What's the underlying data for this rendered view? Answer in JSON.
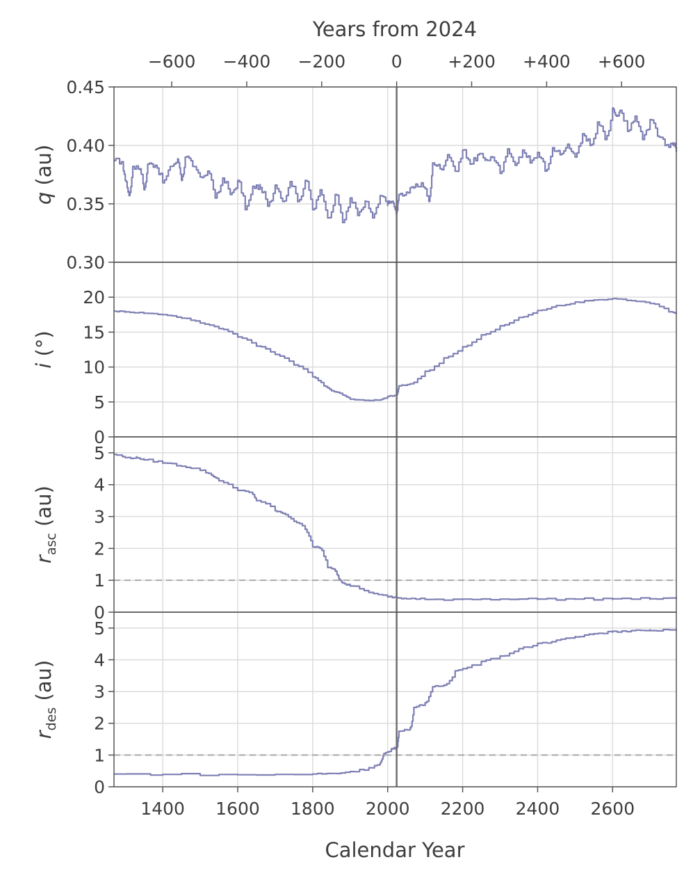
{
  "chart_data": {
    "type": "line",
    "x_axis": {
      "label": "Calendar Year",
      "range": [
        1270,
        2770
      ],
      "ticks": [
        1400,
        1600,
        1800,
        2000,
        2200,
        2400,
        2600
      ],
      "tick_labels": [
        "1400",
        "1600",
        "1800",
        "2000",
        "2200",
        "2400",
        "2600"
      ]
    },
    "top_axis": {
      "label": "Years from 2024",
      "ticks": [
        -600,
        -400,
        -200,
        0,
        200,
        400,
        600
      ],
      "tick_labels": [
        "−600",
        "−400",
        "−200",
        "0",
        "+200",
        "+400",
        "+600"
      ]
    },
    "reference_year": 2024,
    "line_color": "#7d7fb3",
    "panels": [
      {
        "ylabel_main": "q",
        "ylabel_sub": "",
        "ylabel_unit": " (au)",
        "ylim": [
          0.3,
          0.45
        ],
        "yticks": [
          0.3,
          0.35,
          0.4,
          0.45
        ],
        "ytick_labels": [
          "0.30",
          "0.35",
          "0.40",
          "0.45"
        ],
        "hline": null,
        "series": [
          {
            "x": [
              1270,
              1290,
              1300,
              1310,
              1320,
              1340,
              1350,
              1360,
              1380,
              1400,
              1420,
              1440,
              1450,
              1460,
              1480,
              1500,
              1520,
              1540,
              1560,
              1580,
              1600,
              1620,
              1640,
              1660,
              1680,
              1700,
              1720,
              1740,
              1760,
              1780,
              1800,
              1820,
              1840,
              1860,
              1880,
              1900,
              1920,
              1940,
              1960,
              1980,
              2000,
              2010,
              2020,
              2024,
              2030,
              2050,
              2070,
              2090,
              2110,
              2120,
              2140,
              2160,
              2180,
              2200,
              2220,
              2240,
              2260,
              2280,
              2300,
              2320,
              2340,
              2360,
              2380,
              2400,
              2420,
              2440,
              2460,
              2480,
              2500,
              2520,
              2540,
              2560,
              2580,
              2600,
              2610,
              2620,
              2640,
              2660,
              2680,
              2700,
              2720,
              2740,
              2760,
              2770
            ],
            "y": [
              0.387,
              0.386,
              0.37,
              0.357,
              0.382,
              0.38,
              0.362,
              0.384,
              0.383,
              0.368,
              0.382,
              0.388,
              0.37,
              0.39,
              0.382,
              0.373,
              0.378,
              0.355,
              0.372,
              0.358,
              0.37,
              0.345,
              0.365,
              0.364,
              0.348,
              0.366,
              0.352,
              0.369,
              0.352,
              0.37,
              0.345,
              0.362,
              0.338,
              0.358,
              0.334,
              0.355,
              0.34,
              0.352,
              0.338,
              0.357,
              0.35,
              0.352,
              0.345,
              0.343,
              0.358,
              0.36,
              0.364,
              0.368,
              0.352,
              0.385,
              0.38,
              0.392,
              0.378,
              0.396,
              0.384,
              0.392,
              0.388,
              0.39,
              0.376,
              0.397,
              0.383,
              0.396,
              0.385,
              0.394,
              0.378,
              0.398,
              0.392,
              0.401,
              0.39,
              0.41,
              0.4,
              0.42,
              0.405,
              0.432,
              0.425,
              0.43,
              0.412,
              0.425,
              0.405,
              0.422,
              0.408,
              0.4,
              0.402,
              0.396
            ]
          }
        ]
      },
      {
        "ylabel_main": "i",
        "ylabel_sub": "",
        "ylabel_unit": " (°)",
        "ylim": [
          0,
          25
        ],
        "yticks": [
          0,
          5,
          10,
          15,
          20
        ],
        "ytick_labels": [
          "0",
          "5",
          "10",
          "15",
          "20"
        ],
        "hline": null,
        "series": [
          {
            "x": [
              1270,
              1300,
              1350,
              1400,
              1450,
              1500,
              1550,
              1600,
              1650,
              1700,
              1750,
              1800,
              1830,
              1850,
              1880,
              1900,
              1950,
              1980,
              2000,
              2024,
              2030,
              2060,
              2100,
              2150,
              2200,
              2250,
              2300,
              2350,
              2400,
              2450,
              2500,
              2550,
              2600,
              2650,
              2700,
              2750,
              2770
            ],
            "y": [
              18.0,
              17.9,
              17.7,
              17.5,
              17.0,
              16.3,
              15.5,
              14.3,
              13.0,
              11.8,
              10.3,
              8.6,
              7.3,
              6.6,
              6.0,
              5.4,
              5.2,
              5.3,
              5.8,
              6.0,
              7.3,
              7.6,
              9.4,
              11.3,
              12.9,
              14.6,
              15.9,
              17.1,
              18.1,
              18.8,
              19.3,
              19.6,
              19.8,
              19.5,
              19.1,
              17.9,
              17.7
            ]
          }
        ]
      },
      {
        "ylabel_main": "r",
        "ylabel_sub": "asc",
        "ylabel_unit": " (au)",
        "ylim": [
          0,
          5.5
        ],
        "yticks": [
          0,
          1,
          2,
          3,
          4,
          5
        ],
        "ytick_labels": [
          "0",
          "1",
          "2",
          "3",
          "4",
          "5"
        ],
        "hline": 1,
        "series": [
          {
            "x": [
              1270,
              1300,
              1330,
              1350,
              1400,
              1450,
              1500,
              1530,
              1550,
              1600,
              1640,
              1650,
              1700,
              1720,
              1750,
              1780,
              1800,
              1820,
              1840,
              1860,
              1870,
              1880,
              1900,
              1950,
              2000,
              2024,
              2050,
              2100,
              2200,
              2300,
              2400,
              2500,
              2600,
              2700,
              2770
            ],
            "y": [
              4.95,
              4.85,
              4.85,
              4.78,
              4.68,
              4.58,
              4.45,
              4.3,
              4.12,
              3.82,
              3.7,
              3.5,
              3.18,
              3.1,
              2.85,
              2.6,
              2.05,
              2.0,
              1.4,
              1.3,
              1.05,
              0.92,
              0.82,
              0.62,
              0.48,
              0.45,
              0.42,
              0.4,
              0.41,
              0.41,
              0.41,
              0.41,
              0.42,
              0.42,
              0.42
            ]
          }
        ]
      },
      {
        "ylabel_main": "r",
        "ylabel_sub": "des",
        "ylabel_unit": " (au)",
        "ylim": [
          0,
          5.5
        ],
        "yticks": [
          0,
          1,
          2,
          3,
          4,
          5
        ],
        "ytick_labels": [
          "0",
          "1",
          "2",
          "3",
          "4",
          "5"
        ],
        "hline": 1,
        "series": [
          {
            "x": [
              1270,
              1400,
              1600,
              1800,
              1850,
              1900,
              1950,
              1980,
              1990,
              2010,
              2024,
              2030,
              2060,
              2070,
              2100,
              2120,
              2150,
              2180,
              2200,
              2250,
              2300,
              2350,
              2400,
              2450,
              2500,
              2550,
              2600,
              2650,
              2700,
              2770
            ],
            "y": [
              0.4,
              0.39,
              0.38,
              0.4,
              0.42,
              0.48,
              0.6,
              0.75,
              1.05,
              1.2,
              1.22,
              1.75,
              1.85,
              2.5,
              2.65,
              3.15,
              3.2,
              3.65,
              3.72,
              3.95,
              4.12,
              4.35,
              4.52,
              4.62,
              4.72,
              4.82,
              4.9,
              4.92,
              4.92,
              4.95
            ]
          }
        ]
      }
    ]
  }
}
